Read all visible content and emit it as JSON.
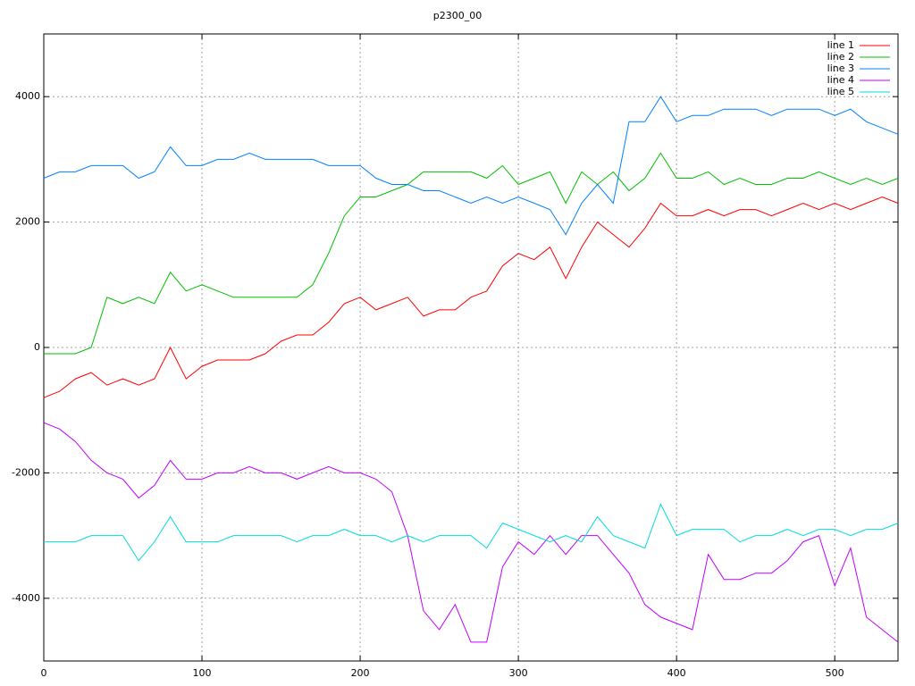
{
  "chart_data": {
    "type": "line",
    "title": "p2300_00",
    "x": [
      0,
      10,
      20,
      30,
      40,
      50,
      60,
      70,
      80,
      90,
      100,
      110,
      120,
      130,
      140,
      150,
      160,
      170,
      180,
      190,
      200,
      210,
      220,
      230,
      240,
      250,
      260,
      270,
      280,
      290,
      300,
      310,
      320,
      330,
      340,
      350,
      360,
      370,
      380,
      390,
      400,
      410,
      420,
      430,
      440,
      450,
      460,
      470,
      480,
      490,
      500,
      510,
      520,
      530,
      540
    ],
    "xlim": [
      0,
      540
    ],
    "ylim": [
      -5000,
      5000
    ],
    "xticks": [
      0,
      100,
      200,
      300,
      400,
      500
    ],
    "yticks": [
      -4000,
      -2000,
      0,
      2000,
      4000
    ],
    "grid": true,
    "legend": "top right",
    "series": [
      {
        "name": "line 1",
        "color": "#ff0000",
        "values": [
          -800,
          -700,
          -500,
          -400,
          -600,
          -500,
          -600,
          -500,
          0,
          -500,
          -300,
          -200,
          -200,
          -200,
          -100,
          100,
          200,
          200,
          400,
          700,
          800,
          600,
          700,
          800,
          500,
          600,
          600,
          800,
          900,
          1300,
          1500,
          1400,
          1600,
          1100,
          1600,
          2000,
          1800,
          1600,
          1900,
          2300,
          2100,
          2100,
          2200,
          2100,
          2200,
          2200,
          2100,
          2200,
          2300,
          2200,
          2300,
          2200,
          2300,
          2400,
          2300
        ]
      },
      {
        "name": "line 2",
        "color": "#00c000",
        "values": [
          -100,
          -100,
          -100,
          0,
          800,
          700,
          800,
          700,
          1200,
          900,
          1000,
          900,
          800,
          800,
          800,
          800,
          800,
          1000,
          1500,
          2100,
          2400,
          2400,
          2500,
          2600,
          2800,
          2800,
          2800,
          2800,
          2700,
          2900,
          2600,
          2700,
          2800,
          2300,
          2800,
          2600,
          2800,
          2500,
          2700,
          3100,
          2700,
          2700,
          2800,
          2600,
          2700,
          2600,
          2600,
          2700,
          2700,
          2800,
          2700,
          2600,
          2700,
          2600,
          2700
        ]
      },
      {
        "name": "line 3",
        "color": "#0080ff",
        "values": [
          2700,
          2800,
          2800,
          2900,
          2900,
          2900,
          2700,
          2800,
          3200,
          2900,
          2900,
          3000,
          3000,
          3100,
          3000,
          3000,
          3000,
          3000,
          2900,
          2900,
          2900,
          2700,
          2600,
          2600,
          2500,
          2500,
          2400,
          2300,
          2400,
          2300,
          2400,
          2300,
          2200,
          1800,
          2300,
          2600,
          2300,
          3600,
          3600,
          4000,
          3600,
          3700,
          3700,
          3800,
          3800,
          3800,
          3700,
          3800,
          3800,
          3800,
          3700,
          3800,
          3600,
          3500,
          3400
        ]
      },
      {
        "name": "line 4",
        "color": "#c000ff",
        "values": [
          -1200,
          -1300,
          -1500,
          -1800,
          -2000,
          -2100,
          -2400,
          -2200,
          -1800,
          -2100,
          -2100,
          -2000,
          -2000,
          -1900,
          -2000,
          -2000,
          -2100,
          -2000,
          -1900,
          -2000,
          -2000,
          -2100,
          -2300,
          -3000,
          -4200,
          -4500,
          -4100,
          -4700,
          -4700,
          -3500,
          -3100,
          -3300,
          -3000,
          -3300,
          -3000,
          -3000,
          -3300,
          -3600,
          -4100,
          -4300,
          -4400,
          -4500,
          -3300,
          -3700,
          -3700,
          -3600,
          -3600,
          -3400,
          -3100,
          -3000,
          -3800,
          -3200,
          -4300,
          -4500,
          -4700
        ]
      },
      {
        "name": "line 5",
        "color": "#00dddd",
        "values": [
          -3100,
          -3100,
          -3100,
          -3000,
          -3000,
          -3000,
          -3400,
          -3100,
          -2700,
          -3100,
          -3100,
          -3100,
          -3000,
          -3000,
          -3000,
          -3000,
          -3100,
          -3000,
          -3000,
          -2900,
          -3000,
          -3000,
          -3100,
          -3000,
          -3100,
          -3000,
          -3000,
          -3000,
          -3200,
          -2800,
          -2900,
          -3000,
          -3100,
          -3000,
          -3100,
          -2700,
          -3000,
          -3100,
          -3200,
          -2500,
          -3000,
          -2900,
          -2900,
          -2900,
          -3100,
          -3000,
          -3000,
          -2900,
          -3000,
          -2900,
          -2900,
          -3000,
          -2900,
          -2900,
          -2800
        ]
      }
    ]
  }
}
